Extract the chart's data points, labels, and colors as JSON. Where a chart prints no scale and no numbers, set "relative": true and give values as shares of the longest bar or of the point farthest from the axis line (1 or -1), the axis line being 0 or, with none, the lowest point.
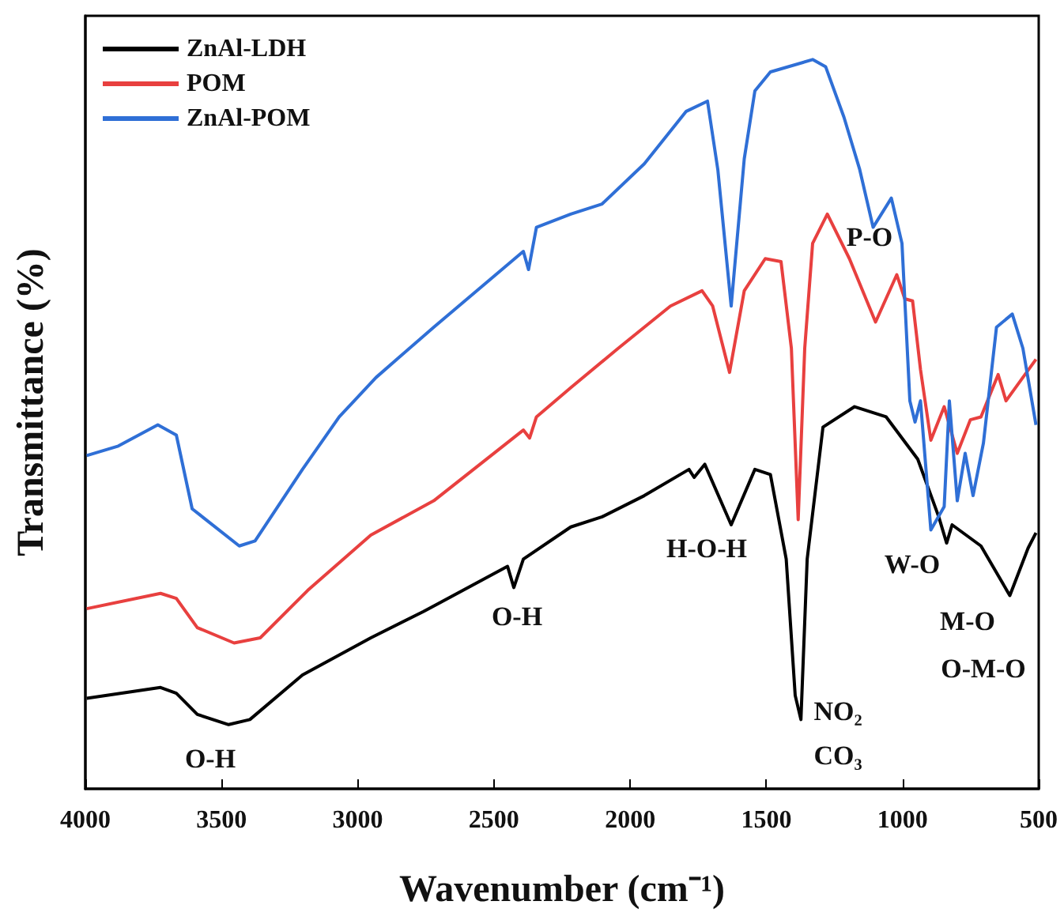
{
  "chart_data": {
    "type": "line",
    "relative": true,
    "xlabel": "Wavenumber (cm⁻¹)",
    "ylabel": "Transmittance (%)",
    "xlim": [
      4000,
      500
    ],
    "xticks": [
      4000,
      3500,
      3000,
      2500,
      2000,
      1500,
      1000,
      500
    ],
    "legend": "top left",
    "marker": "none",
    "series": [
      {
        "name": "ZnAl-LDH",
        "color": "#000000",
        "x": [
          3995,
          3724,
          3666,
          3589,
          3474,
          3396,
          3203,
          2952,
          2759,
          2450,
          2427,
          2392,
          2218,
          2103,
          1948,
          1784,
          1765,
          1726,
          1629,
          1542,
          1485,
          1427,
          1394,
          1373,
          1350,
          1292,
          1176,
          1060,
          944,
          867,
          838,
          818,
          712,
          606,
          539,
          510
        ],
        "values": [
          0.124,
          0.139,
          0.131,
          0.102,
          0.088,
          0.095,
          0.156,
          0.207,
          0.243,
          0.305,
          0.276,
          0.315,
          0.359,
          0.373,
          0.402,
          0.438,
          0.427,
          0.445,
          0.362,
          0.438,
          0.431,
          0.315,
          0.128,
          0.095,
          0.315,
          0.496,
          0.524,
          0.51,
          0.452,
          0.373,
          0.337,
          0.362,
          0.333,
          0.265,
          0.33,
          0.351
        ]
      },
      {
        "name": "POM",
        "color": "#e8403f",
        "x": [
          3995,
          3724,
          3666,
          3589,
          3454,
          3358,
          3184,
          2952,
          2721,
          2392,
          2369,
          2344,
          2218,
          2044,
          1852,
          1736,
          1697,
          1635,
          1581,
          1504,
          1446,
          1408,
          1383,
          1359,
          1330,
          1276,
          1195,
          1099,
          1021,
          992,
          963,
          934,
          896,
          847,
          799,
          751,
          712,
          649,
          620,
          510
        ],
        "values": [
          0.247,
          0.268,
          0.261,
          0.221,
          0.2,
          0.207,
          0.272,
          0.348,
          0.395,
          0.492,
          0.481,
          0.51,
          0.55,
          0.604,
          0.662,
          0.683,
          0.662,
          0.571,
          0.683,
          0.727,
          0.723,
          0.604,
          0.369,
          0.604,
          0.748,
          0.788,
          0.727,
          0.64,
          0.705,
          0.672,
          0.669,
          0.575,
          0.478,
          0.524,
          0.46,
          0.506,
          0.51,
          0.568,
          0.532,
          0.589
        ]
      },
      {
        "name": "ZnAl-POM",
        "color": "#2f6fd6",
        "x": [
          3995,
          3879,
          3734,
          3666,
          3608,
          3435,
          3377,
          3203,
          3068,
          2933,
          2721,
          2392,
          2373,
          2344,
          2218,
          2103,
          1948,
          1794,
          1716,
          1678,
          1629,
          1581,
          1542,
          1485,
          1330,
          1282,
          1215,
          1157,
          1108,
          1041,
          1002,
          973,
          954,
          934,
          896,
          847,
          828,
          799,
          770,
          741,
          703,
          655,
          597,
          558,
          510
        ],
        "values": [
          0.457,
          0.47,
          0.499,
          0.485,
          0.384,
          0.333,
          0.34,
          0.438,
          0.51,
          0.564,
          0.633,
          0.737,
          0.712,
          0.77,
          0.788,
          0.802,
          0.857,
          0.929,
          0.943,
          0.849,
          0.662,
          0.864,
          0.957,
          0.983,
          1.0,
          0.99,
          0.921,
          0.849,
          0.77,
          0.81,
          0.748,
          0.532,
          0.503,
          0.532,
          0.355,
          0.387,
          0.532,
          0.395,
          0.46,
          0.402,
          0.474,
          0.633,
          0.651,
          0.604,
          0.499
        ]
      }
    ],
    "annotations": [
      "O-H",
      "O-H",
      "H-O-H",
      "NO₂",
      "CO₃",
      "P-O",
      "W-O",
      "M-O",
      "O-M-O"
    ]
  }
}
